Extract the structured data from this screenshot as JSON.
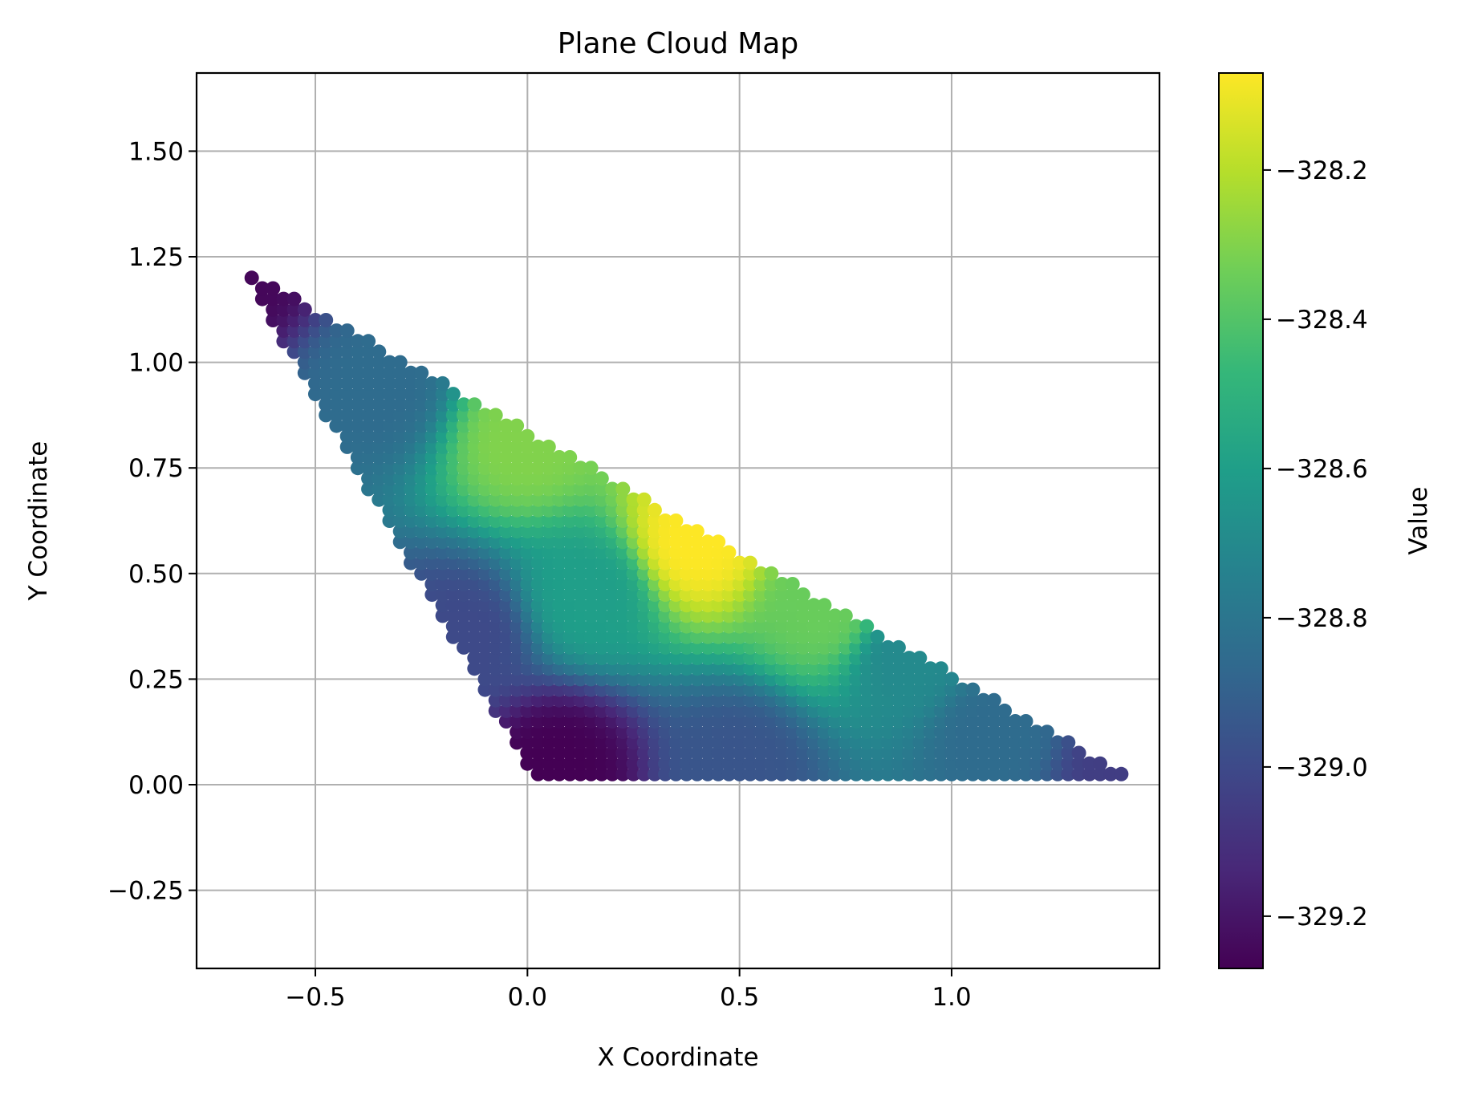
{
  "chart_data": {
    "type": "scatter",
    "title": "Plane Cloud Map",
    "xlabel": "X Coordinate",
    "ylabel": "Y Coordinate",
    "xlim": [
      -0.78,
      1.49
    ],
    "ylim": [
      -0.435,
      1.685
    ],
    "grid": true,
    "x_ticks": [
      -0.5,
      0.0,
      0.5,
      1.0
    ],
    "x_tick_labels": [
      "−0.5",
      "0.0",
      "0.5",
      "1.0"
    ],
    "y_ticks": [
      -0.25,
      0.0,
      0.25,
      0.5,
      0.75,
      1.0,
      1.25,
      1.5
    ],
    "y_tick_labels": [
      "−0.25",
      "0.00",
      "0.25",
      "0.50",
      "0.75",
      "1.00",
      "1.25",
      "1.50"
    ],
    "triangle_vertices": [
      [
        -0.675,
        1.225
      ],
      [
        0.01,
        0.025
      ],
      [
        1.41,
        0.025
      ]
    ],
    "point_spacing": 0.025,
    "colormap": "viridis",
    "colormap_stops": [
      "#440154",
      "#482878",
      "#3e4989",
      "#31688e",
      "#26828e",
      "#1f9e89",
      "#35b779",
      "#6ece58",
      "#b5de2b",
      "#fde725"
    ],
    "colorbar": {
      "label": "Value",
      "range": [
        -329.27,
        -328.07
      ],
      "ticks": [
        -328.2,
        -328.4,
        -328.6,
        -328.8,
        -329.0,
        -329.2
      ],
      "tick_labels": [
        "−328.2",
        "−328.4",
        "−328.6",
        "−328.8",
        "−329.0",
        "−329.2"
      ]
    },
    "value_extremes": {
      "min": {
        "x": 0.08,
        "y": 0.05,
        "value": -329.27
      },
      "max": {
        "x": 0.4,
        "y": 0.58,
        "value": -328.07
      },
      "high_corner": {
        "x": 1.41,
        "y": 0.025,
        "value": -329.05
      },
      "left_corner": {
        "x": -0.675,
        "y": 1.225,
        "value": -329.25
      }
    }
  }
}
